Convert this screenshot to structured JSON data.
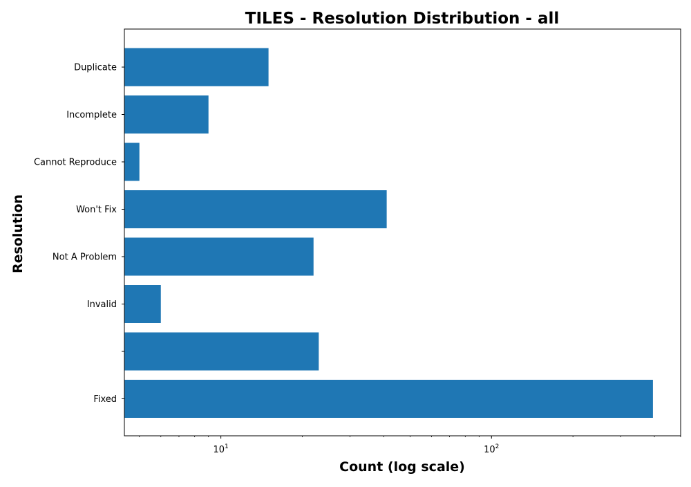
{
  "chart_data": {
    "type": "bar",
    "orientation": "horizontal",
    "title": "TILES - Resolution Distribution - all",
    "xlabel": "Count (log scale)",
    "ylabel": "Resolution",
    "xscale": "log",
    "xlim": [
      4.4,
      500
    ],
    "xticks": [
      {
        "value": 10,
        "base": "10",
        "exp": "1"
      },
      {
        "value": 100,
        "base": "10",
        "exp": "2"
      }
    ],
    "categories": [
      "Fixed",
      "",
      "Invalid",
      "Not A Problem",
      "Won't Fix",
      "Cannot Reproduce",
      "Incomplete",
      "Duplicate"
    ],
    "values": [
      395,
      23,
      6,
      22,
      41,
      5,
      9,
      15
    ],
    "bar_color": "#1f77b4",
    "grid": false,
    "legend": "none"
  }
}
